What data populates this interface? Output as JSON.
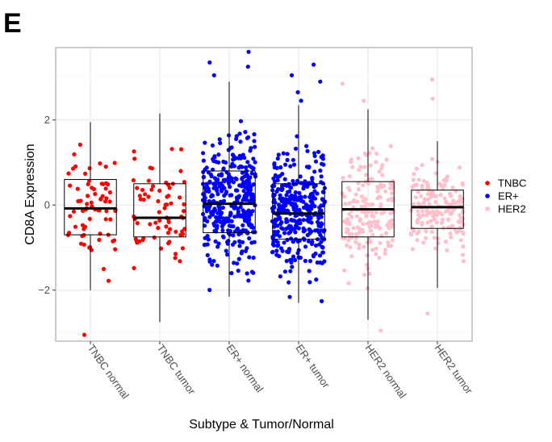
{
  "panel_letter": "E",
  "chart_data": {
    "type": "box",
    "title": "",
    "xlabel": "Subtype & Tumor/Normal",
    "ylabel": "CD8A Expression",
    "ylim": [
      -3.2,
      3.7
    ],
    "yticks": [
      -2,
      0,
      2
    ],
    "grid": true,
    "legend_position": "right",
    "categories": [
      "TNBC normal",
      "TNBC tumor",
      "ER+ normal",
      "ER+ tumor",
      "HER2 normal",
      "HER2 tumor"
    ],
    "legend": [
      {
        "name": "TNBC",
        "color": "#ff0000"
      },
      {
        "name": "ER+",
        "color": "#0000ff"
      },
      {
        "name": "HER2",
        "color": "#ffc0cb"
      }
    ],
    "series": [
      {
        "category": "TNBC normal",
        "group": "TNBC",
        "color": "#ff0000",
        "n_points": 70,
        "min": -2.0,
        "q1": -0.7,
        "median": -0.08,
        "q3": 0.6,
        "max": 1.95,
        "outliers": [
          -3.05
        ]
      },
      {
        "category": "TNBC tumor",
        "group": "TNBC",
        "color": "#ff0000",
        "n_points": 70,
        "min": -2.75,
        "q1": -0.75,
        "median": -0.3,
        "q3": 0.5,
        "max": 2.15,
        "outliers": []
      },
      {
        "category": "ER+ normal",
        "group": "ER+",
        "color": "#0000ff",
        "n_points": 380,
        "min": -2.15,
        "q1": -0.65,
        "median": 0.03,
        "q3": 0.8,
        "max": 2.9,
        "outliers": [
          3.05,
          3.25,
          3.35,
          3.6
        ]
      },
      {
        "category": "ER+ tumor",
        "group": "ER+",
        "color": "#0000ff",
        "n_points": 380,
        "min": -2.3,
        "q1": -0.8,
        "median": -0.2,
        "q3": 0.5,
        "max": 2.35,
        "outliers": [
          2.45,
          2.65,
          2.9,
          3.05,
          3.3
        ]
      },
      {
        "category": "HER2 normal",
        "group": "HER2",
        "color": "#ffc0cb",
        "n_points": 180,
        "min": -2.7,
        "q1": -0.75,
        "median": -0.1,
        "q3": 0.55,
        "max": 2.25,
        "outliers": [
          2.45,
          2.85,
          -2.95
        ]
      },
      {
        "category": "HER2 tumor",
        "group": "HER2",
        "color": "#ffc0cb",
        "n_points": 160,
        "min": -1.95,
        "q1": -0.55,
        "median": -0.05,
        "q3": 0.35,
        "max": 1.5,
        "outliers": [
          2.5,
          2.95,
          -2.55
        ]
      }
    ]
  }
}
